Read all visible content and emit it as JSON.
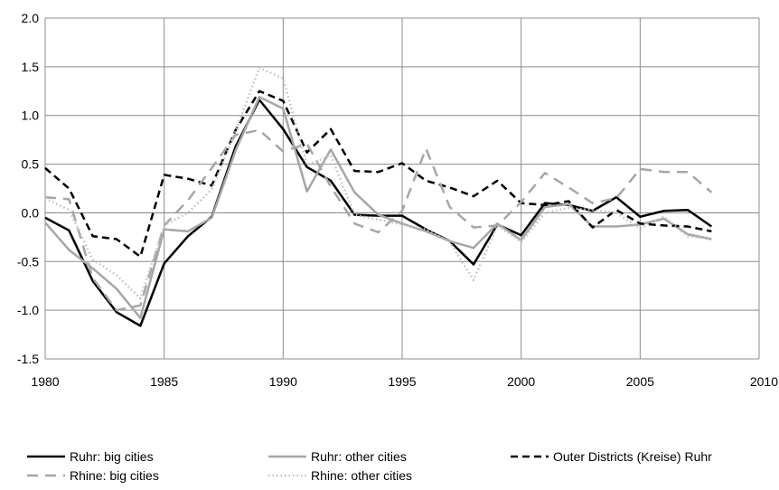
{
  "chart_data": {
    "type": "line",
    "title": "",
    "xlabel": "",
    "ylabel": "",
    "xlim": [
      1980,
      2010
    ],
    "ylim": [
      -1.5,
      2.0
    ],
    "x_ticks": [
      1980,
      1985,
      1990,
      1995,
      2000,
      2005,
      2010
    ],
    "y_ticks": [
      -1.5,
      -1.0,
      -0.5,
      0.0,
      0.5,
      1.0,
      1.5,
      2.0
    ],
    "x_tick_labels": [
      "1980",
      "1985",
      "1990",
      "1995",
      "2000",
      "2005",
      "2010"
    ],
    "y_tick_labels": [
      "-1.5",
      "-1.0",
      "-0.5",
      "0.0",
      "0.5",
      "1.0",
      "1.5",
      "2.0"
    ],
    "grid": true,
    "legend_position": "bottom",
    "x": [
      1980,
      1981,
      1982,
      1983,
      1984,
      1985,
      1986,
      1987,
      1988,
      1989,
      1990,
      1991,
      1992,
      1993,
      1994,
      1995,
      1996,
      1997,
      1998,
      1999,
      2000,
      2001,
      2002,
      2003,
      2004,
      2005,
      2006,
      2007,
      2008
    ],
    "series": [
      {
        "name": "Ruhr: big cities",
        "color": "#000000",
        "dash": "solid",
        "width": 2.5,
        "values": [
          -0.05,
          -0.18,
          -0.7,
          -1.02,
          -1.16,
          -0.52,
          -0.24,
          -0.04,
          0.68,
          1.16,
          0.86,
          0.47,
          0.33,
          -0.02,
          -0.03,
          -0.03,
          -0.17,
          -0.29,
          -0.53,
          -0.12,
          -0.23,
          0.1,
          0.08,
          0.02,
          0.16,
          -0.04,
          0.02,
          0.03,
          -0.14
        ]
      },
      {
        "name": "Ruhr: other cities",
        "color": "#a6a6a6",
        "dash": "solid",
        "width": 2.5,
        "values": [
          -0.1,
          -0.38,
          -0.57,
          -0.78,
          -1.08,
          -0.17,
          -0.19,
          -0.05,
          0.64,
          1.19,
          1.07,
          0.22,
          0.65,
          0.21,
          -0.02,
          -0.11,
          -0.19,
          -0.29,
          -0.36,
          -0.11,
          -0.28,
          0.06,
          0.09,
          -0.14,
          -0.14,
          -0.12,
          -0.06,
          -0.22,
          -0.27
        ]
      },
      {
        "name": "Outer Districts (Kreise) Ruhr",
        "color": "#000000",
        "dash": "8,5",
        "width": 2.5,
        "values": [
          0.46,
          0.25,
          -0.24,
          -0.27,
          -0.45,
          0.39,
          0.35,
          0.28,
          0.85,
          1.25,
          1.15,
          0.62,
          0.86,
          0.43,
          0.42,
          0.51,
          0.33,
          0.26,
          0.17,
          0.33,
          0.1,
          0.08,
          0.12,
          -0.15,
          0.03,
          -0.11,
          -0.13,
          -0.14,
          -0.19
        ]
      },
      {
        "name": "Rhine: big cities",
        "color": "#a6a6a6",
        "dash": "12,8",
        "width": 2.5,
        "values": [
          0.16,
          0.14,
          -0.67,
          -1.0,
          -0.95,
          -0.13,
          0.13,
          0.46,
          0.8,
          0.85,
          0.63,
          0.71,
          0.27,
          -0.11,
          -0.2,
          0.02,
          0.66,
          0.06,
          -0.15,
          -0.13,
          0.11,
          0.41,
          0.26,
          0.1,
          0.15,
          0.45,
          0.42,
          0.42,
          0.21
        ]
      },
      {
        "name": "Rhine: other cities",
        "color": "#bfbfbf",
        "dash": "1.5,3",
        "width": 2.5,
        "values": [
          0.15,
          0.03,
          -0.48,
          -0.64,
          -0.88,
          -0.13,
          0.0,
          0.24,
          0.84,
          1.49,
          1.38,
          0.49,
          0.59,
          -0.02,
          -0.07,
          -0.12,
          -0.17,
          -0.3,
          -0.69,
          -0.13,
          -0.3,
          0.0,
          0.05,
          0.03,
          0.0,
          -0.16,
          -0.04,
          -0.24,
          -0.27
        ]
      }
    ]
  }
}
